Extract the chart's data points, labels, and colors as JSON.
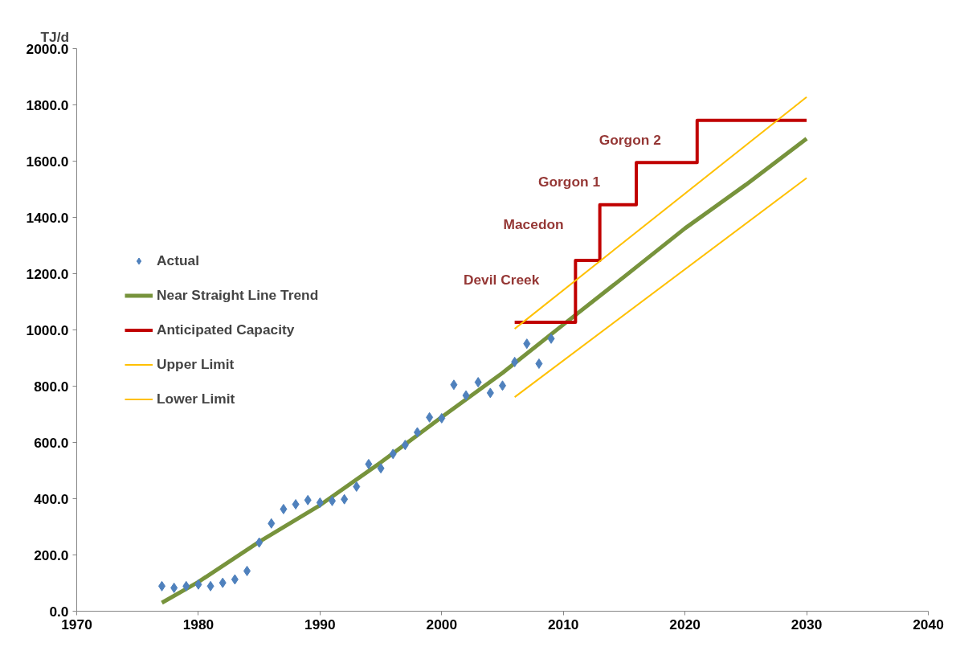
{
  "chart_data": {
    "type": "scatter",
    "ylabel": "TJ/d",
    "xlim": [
      1970,
      2040
    ],
    "ylim": [
      0,
      2000
    ],
    "xticks": [
      1970,
      1980,
      1990,
      2000,
      2010,
      2020,
      2030,
      2040
    ],
    "yticks": [
      {
        "value": 0,
        "label": "0.0"
      },
      {
        "value": 200,
        "label": "200.0"
      },
      {
        "value": 400,
        "label": "400.0"
      },
      {
        "value": 600,
        "label": "600.0"
      },
      {
        "value": 800,
        "label": "800.0"
      },
      {
        "value": 1000,
        "label": "1000.0"
      },
      {
        "value": 1200,
        "label": "1200.0"
      },
      {
        "value": 1400,
        "label": "1400.0"
      },
      {
        "value": 1600,
        "label": "1600.0"
      },
      {
        "value": 1800,
        "label": "1800.0"
      },
      {
        "value": 2000,
        "label": "2000.0"
      }
    ],
    "grid": false,
    "legend": "left",
    "series": [
      {
        "name": "Actual",
        "marker": "diamond",
        "color": "#4f81bd",
        "x": [
          1977,
          1978,
          1979,
          1980,
          1981,
          1982,
          1983,
          1984,
          1985,
          1986,
          1987,
          1988,
          1989,
          1990,
          1991,
          1992,
          1993,
          1994,
          1995,
          1996,
          1997,
          1998,
          1999,
          2000,
          2001,
          2002,
          2003,
          2004,
          2005,
          2006,
          2007,
          2008,
          2009
        ],
        "values": [
          89,
          83,
          89,
          95,
          89,
          101,
          113,
          143,
          244,
          312,
          363,
          380,
          395,
          386,
          392,
          398,
          443,
          523,
          508,
          559,
          591,
          636,
          689,
          686,
          805,
          767,
          814,
          776,
          802,
          886,
          951,
          880,
          969
        ]
      },
      {
        "name": "Near Straight Line Trend",
        "type": "line",
        "color": "#77933c",
        "x": [
          1977,
          1980,
          1985,
          1990,
          1995,
          2000,
          2005,
          2010,
          2015,
          2020,
          2025,
          2030
        ],
        "values": [
          30,
          104,
          247,
          377,
          529,
          690,
          847,
          1019,
          1189,
          1361,
          1516,
          1680
        ]
      },
      {
        "name": "Anticipated Capacity",
        "type": "step",
        "color": "#c00000",
        "x": [
          2006,
          2011,
          2013,
          2016,
          2021,
          2030
        ],
        "values": [
          1027,
          1247,
          1445,
          1595,
          1745,
          1745
        ]
      },
      {
        "name": "Upper Limit",
        "type": "line",
        "color": "#ffc000",
        "x": [
          2006,
          2030
        ],
        "values": [
          1004,
          1828
        ]
      },
      {
        "name": "Lower Limit",
        "type": "line",
        "color": "#ffc000",
        "x": [
          2006,
          2030
        ],
        "values": [
          761,
          1540
        ]
      }
    ],
    "annotations": [
      {
        "text": "Devil Creek",
        "x": 2011,
        "y": 1247
      },
      {
        "text": "Macedon",
        "x": 2013,
        "y": 1445
      },
      {
        "text": "Gorgon 1",
        "x": 2016,
        "y": 1595
      },
      {
        "text": "Gorgon 2",
        "x": 2021,
        "y": 1745
      }
    ]
  }
}
